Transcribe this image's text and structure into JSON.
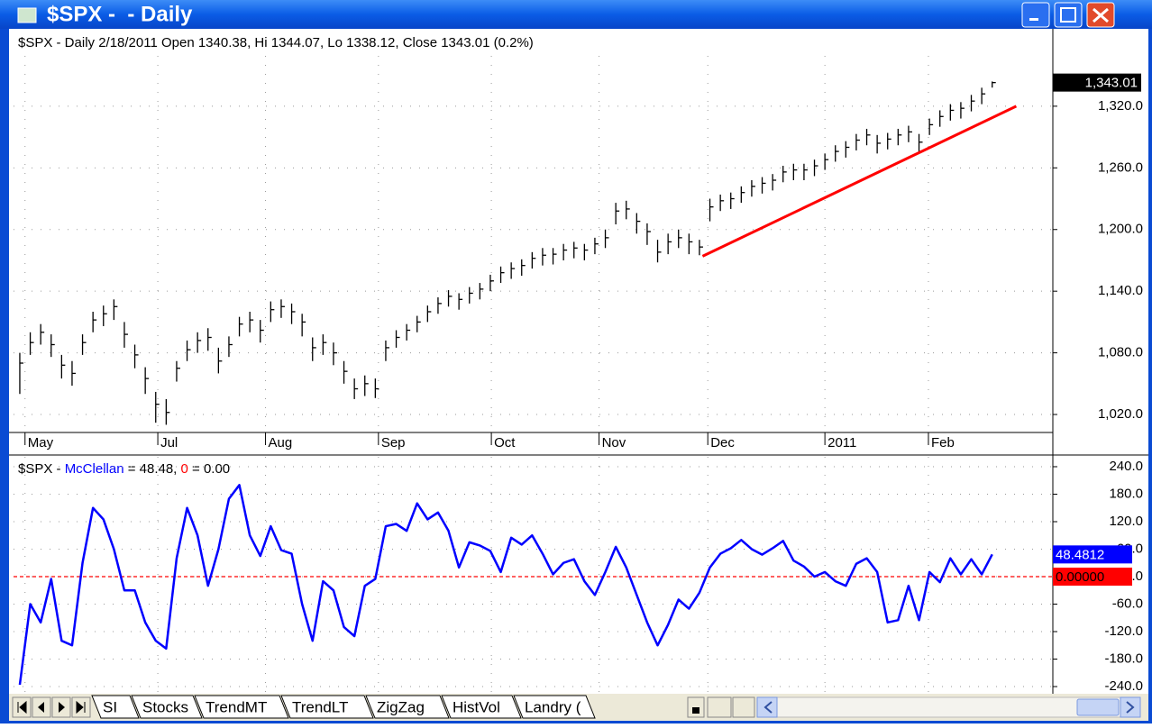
{
  "window": {
    "title": "$SPX -  - Daily"
  },
  "price_chart": {
    "type": "ohlc",
    "header": "$SPX - Daily 2/18/2011 Open 1340.38, Hi 1344.07, Lo 1338.12, Close 1343.01 (0.2%)",
    "color": "#000000",
    "grid": true,
    "xlim": [
      -0.6,
      98.8
    ],
    "xticks": [
      {
        "value": 0.5,
        "label": "May"
      },
      {
        "value": 13.2,
        "label": "Jul"
      },
      {
        "value": 23.5,
        "label": "Aug"
      },
      {
        "value": 34.3,
        "label": "Sep"
      },
      {
        "value": 45.1,
        "label": "Oct"
      },
      {
        "value": 55.4,
        "label": "Nov"
      },
      {
        "value": 65.8,
        "label": "Dec"
      },
      {
        "value": 77,
        "label": "2011"
      },
      {
        "value": 86.9,
        "label": "Feb"
      }
    ],
    "ylim": [
      1002.5,
      1369
    ],
    "yticks": [
      {
        "value": 1020,
        "label": "1,020.0"
      },
      {
        "value": 1080,
        "label": "1,080.0"
      },
      {
        "value": 1140,
        "label": "1,140.0"
      },
      {
        "value": 1200,
        "label": "1,200.0"
      },
      {
        "value": 1260,
        "label": "1,260.0"
      },
      {
        "value": 1320,
        "label": "1,320.0"
      }
    ],
    "high": [
      1080,
      1100,
      1108,
      1098,
      1078,
      1072,
      1098,
      1120,
      1126,
      1132,
      1110,
      1088,
      1066,
      1042,
      1035,
      1072,
      1092,
      1100,
      1104,
      1085,
      1096,
      1115,
      1120,
      1112,
      1130,
      1132,
      1128,
      1118,
      1095,
      1098,
      1090,
      1072,
      1055,
      1058,
      1055,
      1092,
      1102,
      1108,
      1116,
      1126,
      1134,
      1141,
      1138,
      1144,
      1148,
      1156,
      1164,
      1168,
      1171,
      1178,
      1182,
      1182,
      1186,
      1188,
      1186,
      1192,
      1200,
      1226,
      1228,
      1216,
      1206,
      1190,
      1196,
      1200,
      1196,
      1190,
      1230,
      1234,
      1236,
      1242,
      1248,
      1251,
      1254,
      1262,
      1264,
      1264,
      1268,
      1274,
      1282,
      1286,
      1293,
      1298,
      1292,
      1294,
      1298,
      1301,
      1293,
      1308,
      1316,
      1322,
      1324,
      1331,
      1338,
      1344.07
    ],
    "low": [
      1040,
      1078,
      1088,
      1076,
      1055,
      1048,
      1078,
      1100,
      1106,
      1112,
      1085,
      1065,
      1040,
      1012,
      1010,
      1052,
      1072,
      1080,
      1082,
      1060,
      1076,
      1096,
      1100,
      1090,
      1110,
      1114,
      1108,
      1096,
      1072,
      1078,
      1068,
      1050,
      1035,
      1038,
      1036,
      1072,
      1085,
      1092,
      1100,
      1110,
      1118,
      1125,
      1122,
      1128,
      1132,
      1140,
      1148,
      1152,
      1155,
      1162,
      1165,
      1166,
      1170,
      1172,
      1170,
      1176,
      1182,
      1205,
      1210,
      1196,
      1185,
      1168,
      1176,
      1182,
      1176,
      1175,
      1208,
      1218,
      1220,
      1226,
      1232,
      1235,
      1238,
      1246,
      1248,
      1248,
      1252,
      1258,
      1266,
      1270,
      1277,
      1282,
      1274,
      1278,
      1282,
      1285,
      1275,
      1292,
      1300,
      1306,
      1308,
      1315,
      1322,
      1338.12
    ],
    "close": [
      1070,
      1090,
      1100,
      1088,
      1068,
      1060,
      1090,
      1112,
      1118,
      1125,
      1098,
      1078,
      1055,
      1030,
      1022,
      1065,
      1083,
      1092,
      1095,
      1072,
      1088,
      1108,
      1112,
      1102,
      1122,
      1125,
      1120,
      1110,
      1085,
      1090,
      1080,
      1062,
      1045,
      1050,
      1045,
      1085,
      1095,
      1102,
      1110,
      1120,
      1128,
      1135,
      1132,
      1138,
      1142,
      1150,
      1158,
      1162,
      1165,
      1172,
      1175,
      1176,
      1180,
      1182,
      1180,
      1186,
      1192,
      1218,
      1220,
      1208,
      1198,
      1178,
      1188,
      1192,
      1188,
      1183,
      1222,
      1228,
      1230,
      1236,
      1242,
      1245,
      1248,
      1256,
      1258,
      1258,
      1262,
      1268,
      1276,
      1280,
      1287,
      1292,
      1284,
      1288,
      1292,
      1295,
      1285,
      1302,
      1310,
      1316,
      1318,
      1325,
      1332,
      1343.01
    ],
    "last_value_label": "1,343.01",
    "trendline": {
      "x": [
        65.3,
        95.3
      ],
      "values": [
        1174,
        1320
      ],
      "color": "#ff0000"
    }
  },
  "indicator_chart": {
    "type": "line",
    "grid": true,
    "header": {
      "prefix": "$SPX - ",
      "mid": " = 48.48, ",
      "suffix": " = 0.00"
    },
    "ylim": [
      -255.7,
      261.6
    ],
    "yticks": [
      {
        "value": -240,
        "label": "-240.0"
      },
      {
        "value": -180,
        "label": "-180.0"
      },
      {
        "value": -120,
        "label": "-120.0"
      },
      {
        "value": -60,
        "label": "-60.0"
      },
      {
        "value": 0,
        "label": "0.0"
      },
      {
        "value": 60,
        "label": "60.0"
      },
      {
        "value": 120,
        "label": "120.0"
      },
      {
        "value": 180,
        "label": "180.0"
      },
      {
        "value": 240,
        "label": "240.0"
      }
    ],
    "series": [
      {
        "name": "McClellan",
        "color": "#0000ff",
        "value_label": "48.4812",
        "values": [
          -236,
          -60,
          -100,
          -5,
          -140,
          -150,
          30,
          150,
          125,
          60,
          -30,
          -30,
          -100,
          -140,
          -157,
          40,
          150,
          90,
          -20,
          60,
          170,
          200,
          90,
          45,
          110,
          58,
          50,
          -60,
          -140,
          -10,
          -30,
          -110,
          -130,
          -20,
          -5,
          110,
          115,
          100,
          160,
          125,
          140,
          100,
          20,
          75,
          68,
          56,
          10,
          85,
          70,
          90,
          50,
          5,
          30,
          38,
          -10,
          -40,
          10,
          65,
          20,
          -40,
          -100,
          -150,
          -105,
          -50,
          -70,
          -35,
          20,
          50,
          62,
          80,
          60,
          48,
          62,
          78,
          35,
          22,
          0,
          10,
          -10,
          -20,
          28,
          40,
          10,
          -100,
          -95,
          -20,
          -95,
          10,
          -12,
          40,
          5,
          38,
          5,
          48.48
        ]
      }
    ],
    "zero_line": {
      "name": "0",
      "color": "#ff0000",
      "value": 0,
      "value_label": "0.00000"
    }
  },
  "tabs": [
    "SI",
    "Stocks",
    "TrendMT",
    "TrendLT",
    "ZigZag",
    "HistVol",
    "Landry ("
  ]
}
